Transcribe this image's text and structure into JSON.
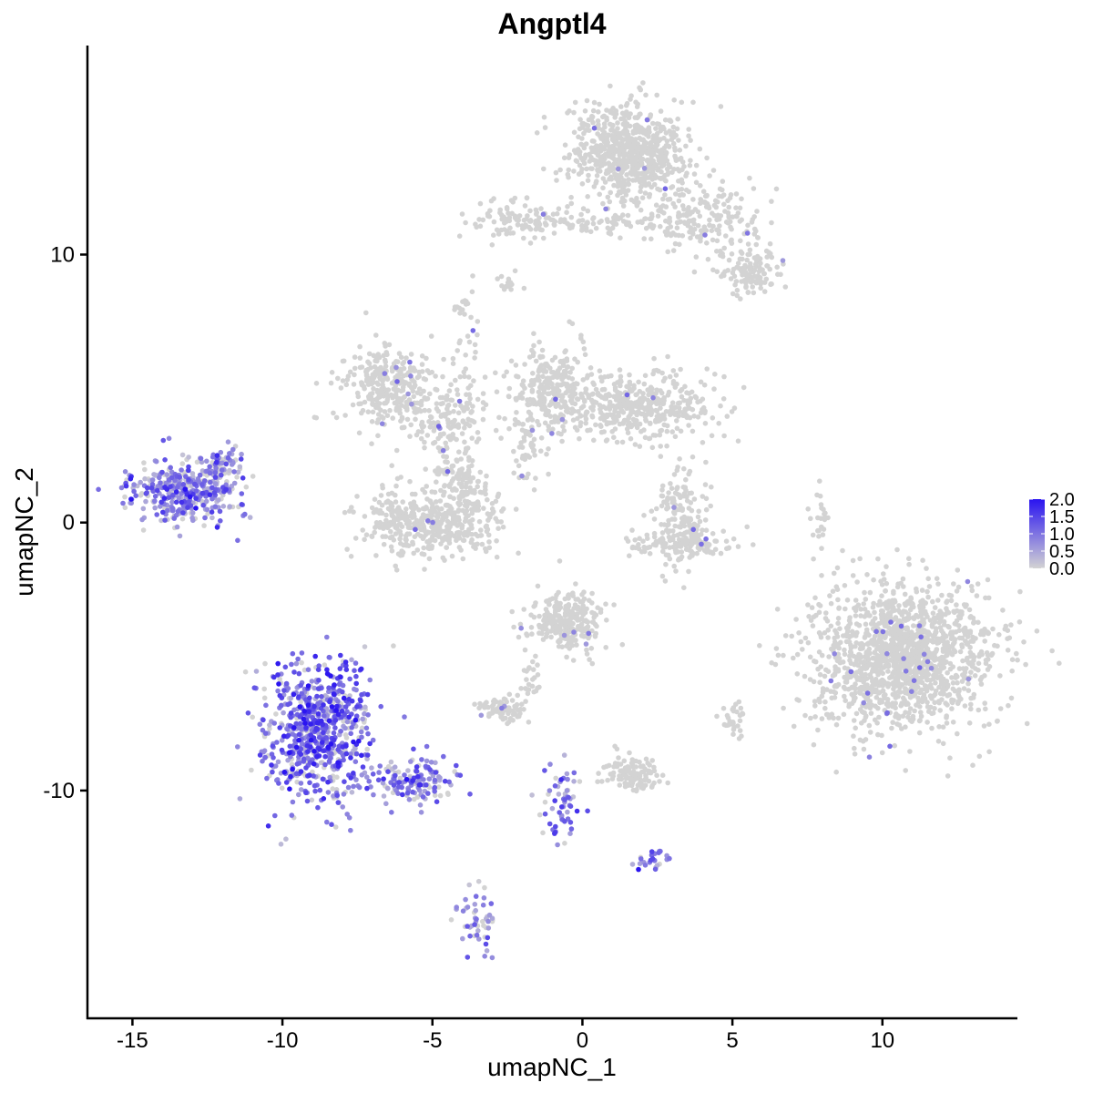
{
  "chart_data": {
    "type": "scatter",
    "title": "Angptl4",
    "xlabel": "umapNC_1",
    "ylabel": "umapNC_2",
    "xlim": [
      -16.5,
      14.5
    ],
    "ylim": [
      -18.5,
      17.8
    ],
    "x_ticks": [
      -15,
      -10,
      -5,
      0,
      5,
      10
    ],
    "x_tick_labels": [
      "-15",
      "-10",
      "-5",
      "0",
      "5",
      "10"
    ],
    "y_ticks": [
      -10,
      0,
      10
    ],
    "y_tick_labels": [
      "-10",
      "0",
      "10"
    ],
    "grid": false,
    "legend_position": "right",
    "color_scale": {
      "low": "#d3d3d3",
      "high": "#2a14f0",
      "min": 0.0,
      "max": 2.0,
      "tick_values": [
        2.0,
        1.5,
        1.0,
        0.5,
        0.0
      ],
      "tick_labels": [
        "2.0",
        "1.5",
        "1.0",
        "0.5",
        "0.0"
      ]
    },
    "clusters": [
      {
        "cx": 1.6,
        "cy": 13.8,
        "sx": 1.0,
        "sy": 0.9,
        "n": 700,
        "expr": 0.0
      },
      {
        "cx": 4.2,
        "cy": 11.3,
        "sx": 1.2,
        "sy": 0.7,
        "n": 200,
        "expr": 0.0
      },
      {
        "cx": 5.6,
        "cy": 9.4,
        "sx": 0.55,
        "sy": 0.45,
        "n": 110,
        "expr": 0.0
      },
      {
        "cx": -2.0,
        "cy": 11.3,
        "sx": 0.9,
        "sy": 0.35,
        "n": 110,
        "expr": 0.0
      },
      {
        "cx": 0.6,
        "cy": 11.1,
        "sx": 1.2,
        "sy": 0.2,
        "n": 60,
        "expr": 0.0
      },
      {
        "cx": -6.5,
        "cy": 5.2,
        "sx": 0.8,
        "sy": 0.7,
        "n": 280,
        "expr": 0.0
      },
      {
        "cx": -5.0,
        "cy": 4.0,
        "sx": 1.0,
        "sy": 0.5,
        "n": 120,
        "expr": 0.0
      },
      {
        "cx": -3.9,
        "cy": 5.8,
        "sx": 0.25,
        "sy": 1.6,
        "n": 60,
        "expr": 0.0
      },
      {
        "cx": -1.0,
        "cy": 5.0,
        "sx": 0.7,
        "sy": 0.9,
        "n": 260,
        "expr": 0.0
      },
      {
        "cx": 1.8,
        "cy": 4.3,
        "sx": 1.4,
        "sy": 0.6,
        "n": 420,
        "expr": 0.0
      },
      {
        "cx": -1.8,
        "cy": 3.2,
        "sx": 0.35,
        "sy": 0.9,
        "n": 60,
        "expr": 0.0
      },
      {
        "cx": -5.0,
        "cy": -0.1,
        "sx": 1.1,
        "sy": 0.5,
        "n": 380,
        "expr": 0.0
      },
      {
        "cx": -3.9,
        "cy": 1.3,
        "sx": 0.5,
        "sy": 0.7,
        "n": 120,
        "expr": 0.0
      },
      {
        "cx": -6.3,
        "cy": 0.5,
        "sx": 0.35,
        "sy": 0.6,
        "n": 60,
        "expr": 0.0
      },
      {
        "cx": -4.6,
        "cy": 2.4,
        "sx": 0.25,
        "sy": 0.8,
        "n": 40,
        "expr": 0.0
      },
      {
        "cx": 3.3,
        "cy": 0.2,
        "sx": 0.4,
        "sy": 0.9,
        "n": 150,
        "expr": 0.0
      },
      {
        "cx": 3.3,
        "cy": -0.8,
        "sx": 0.9,
        "sy": 0.25,
        "n": 120,
        "expr": 0.0
      },
      {
        "cx": 7.9,
        "cy": 0.2,
        "sx": 0.15,
        "sy": 0.7,
        "n": 25,
        "expr": 0.0
      },
      {
        "cx": 10.7,
        "cy": -5.0,
        "sx": 1.5,
        "sy": 1.3,
        "n": 1500,
        "expr": 0.0
      },
      {
        "cx": -0.5,
        "cy": -3.7,
        "sx": 0.6,
        "sy": 0.6,
        "n": 260,
        "expr": 0.0
      },
      {
        "cx": -2.6,
        "cy": -6.9,
        "sx": 0.4,
        "sy": 0.25,
        "n": 80,
        "expr": 0.0
      },
      {
        "cx": -1.8,
        "cy": -5.5,
        "sx": 0.2,
        "sy": 0.6,
        "n": 25,
        "expr": 0.0
      },
      {
        "cx": 1.7,
        "cy": -9.4,
        "sx": 0.45,
        "sy": 0.3,
        "n": 110,
        "expr": 0.0
      },
      {
        "cx": 5.0,
        "cy": -7.4,
        "sx": 0.25,
        "sy": 0.3,
        "n": 30,
        "expr": 0.0
      },
      {
        "cx": -2.5,
        "cy": 8.9,
        "sx": 0.2,
        "sy": 0.2,
        "n": 15,
        "expr": 0.0
      },
      {
        "cx": -13.2,
        "cy": 1.2,
        "sx": 0.9,
        "sy": 0.6,
        "n": 380,
        "expr": 0.75
      },
      {
        "cx": -11.9,
        "cy": 2.2,
        "sx": 0.35,
        "sy": 0.35,
        "n": 50,
        "expr": 0.6
      },
      {
        "cx": -8.8,
        "cy": -7.8,
        "sx": 0.9,
        "sy": 1.3,
        "n": 720,
        "expr": 1.05
      },
      {
        "cx": -5.6,
        "cy": -9.6,
        "sx": 0.8,
        "sy": 0.45,
        "n": 140,
        "expr": 0.8
      },
      {
        "cx": -0.7,
        "cy": -10.6,
        "sx": 0.35,
        "sy": 0.9,
        "n": 60,
        "expr": 0.9
      },
      {
        "cx": 2.3,
        "cy": -12.6,
        "sx": 0.35,
        "sy": 0.2,
        "n": 25,
        "expr": 0.9
      },
      {
        "cx": -3.5,
        "cy": -14.9,
        "sx": 0.3,
        "sy": 0.6,
        "n": 50,
        "expr": 0.55
      }
    ]
  }
}
